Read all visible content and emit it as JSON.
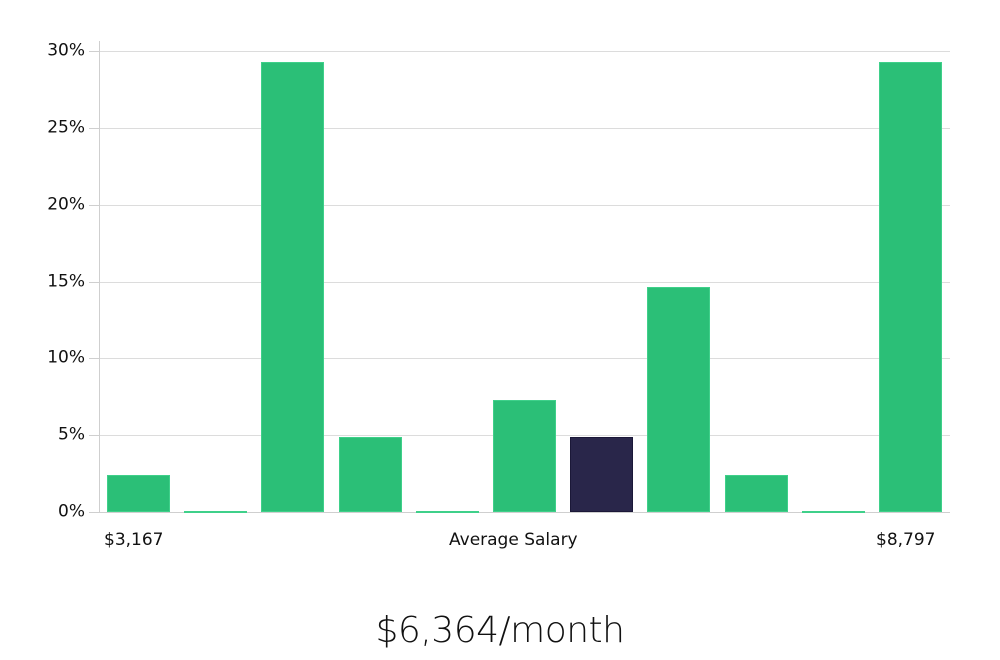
{
  "chart_data": {
    "type": "bar",
    "title": "",
    "xlabel": "Average Salary",
    "ylabel": "",
    "ylim": [
      0,
      30
    ],
    "yticks": [
      "0%",
      "5%",
      "10%",
      "15%",
      "20%",
      "25%",
      "30%"
    ],
    "ytick_values": [
      0,
      5,
      10,
      15,
      20,
      25,
      30
    ],
    "grid": true,
    "legend": null,
    "x_min_label": "$3,167",
    "x_max_label": "$8,797",
    "categories": [
      "bin1",
      "bin2",
      "bin3",
      "bin4",
      "bin5",
      "bin6",
      "bin7",
      "bin8",
      "bin9",
      "bin10",
      "bin11"
    ],
    "values": [
      2.44,
      0,
      29.27,
      4.88,
      0,
      7.32,
      4.88,
      14.63,
      2.44,
      0,
      29.27
    ],
    "highlight_index": 6,
    "colors": {
      "bar": "#2bbf77",
      "highlight": "#29264a",
      "grid": "#dcdcdc",
      "axis": "#cfcfcf"
    }
  },
  "summary": {
    "value_label": "$6,364/month"
  }
}
